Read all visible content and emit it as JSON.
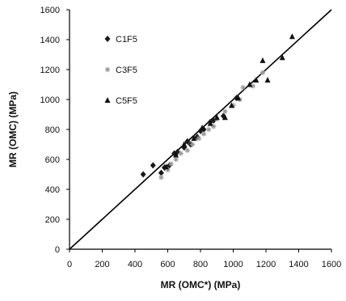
{
  "chart_data": {
    "type": "scatter",
    "title": "",
    "xlabel": "MR (OMC*)  (MPa)",
    "ylabel": "MR (OMC)  (MPa)",
    "xlim": [
      0,
      1600
    ],
    "ylim": [
      0,
      1600
    ],
    "xticks": [
      "0",
      "200",
      "400",
      "600",
      "800",
      "1000",
      "1200",
      "1400",
      "1600"
    ],
    "yticks": [
      "0",
      "200",
      "400",
      "600",
      "800",
      "1000",
      "1200",
      "1400",
      "1600"
    ],
    "grid": false,
    "legend_position": "top-left",
    "reference_line": {
      "type": "line_of_equality",
      "from": [
        0,
        0
      ],
      "to": [
        1600,
        1600
      ]
    },
    "series": [
      {
        "name": "C1F5",
        "marker": "diamond",
        "color": "#1a1a1a",
        "points": [
          [
            450,
            500
          ],
          [
            510,
            560
          ],
          [
            560,
            510
          ],
          [
            580,
            545
          ],
          [
            610,
            560
          ],
          [
            640,
            640
          ],
          [
            660,
            650
          ],
          [
            700,
            680
          ],
          [
            720,
            720
          ],
          [
            740,
            700
          ],
          [
            780,
            750
          ],
          [
            800,
            790
          ],
          [
            820,
            800
          ],
          [
            860,
            850
          ],
          [
            880,
            860
          ],
          [
            940,
            890
          ],
          [
            1020,
            1010
          ]
        ]
      },
      {
        "name": "C3F5",
        "marker": "asterisk",
        "color": "#999999",
        "points": [
          [
            560,
            480
          ],
          [
            600,
            530
          ],
          [
            620,
            570
          ],
          [
            650,
            600
          ],
          [
            680,
            640
          ],
          [
            720,
            660
          ],
          [
            750,
            700
          ],
          [
            790,
            740
          ],
          [
            820,
            770
          ],
          [
            850,
            800
          ],
          [
            880,
            820
          ],
          [
            900,
            870
          ],
          [
            950,
            920
          ],
          [
            1000,
            960
          ],
          [
            1040,
            1000
          ],
          [
            1060,
            1080
          ],
          [
            1120,
            1090
          ],
          [
            1180,
            1180
          ]
        ]
      },
      {
        "name": "C5F5",
        "marker": "triangle",
        "color": "#111111",
        "points": [
          [
            590,
            550
          ],
          [
            650,
            630
          ],
          [
            700,
            700
          ],
          [
            760,
            740
          ],
          [
            810,
            810
          ],
          [
            860,
            840
          ],
          [
            900,
            880
          ],
          [
            950,
            880
          ],
          [
            990,
            960
          ],
          [
            1030,
            1010
          ],
          [
            1100,
            1100
          ],
          [
            1140,
            1130
          ],
          [
            1180,
            1260
          ],
          [
            1210,
            1130
          ],
          [
            1300,
            1280
          ],
          [
            1360,
            1420
          ]
        ]
      }
    ]
  }
}
